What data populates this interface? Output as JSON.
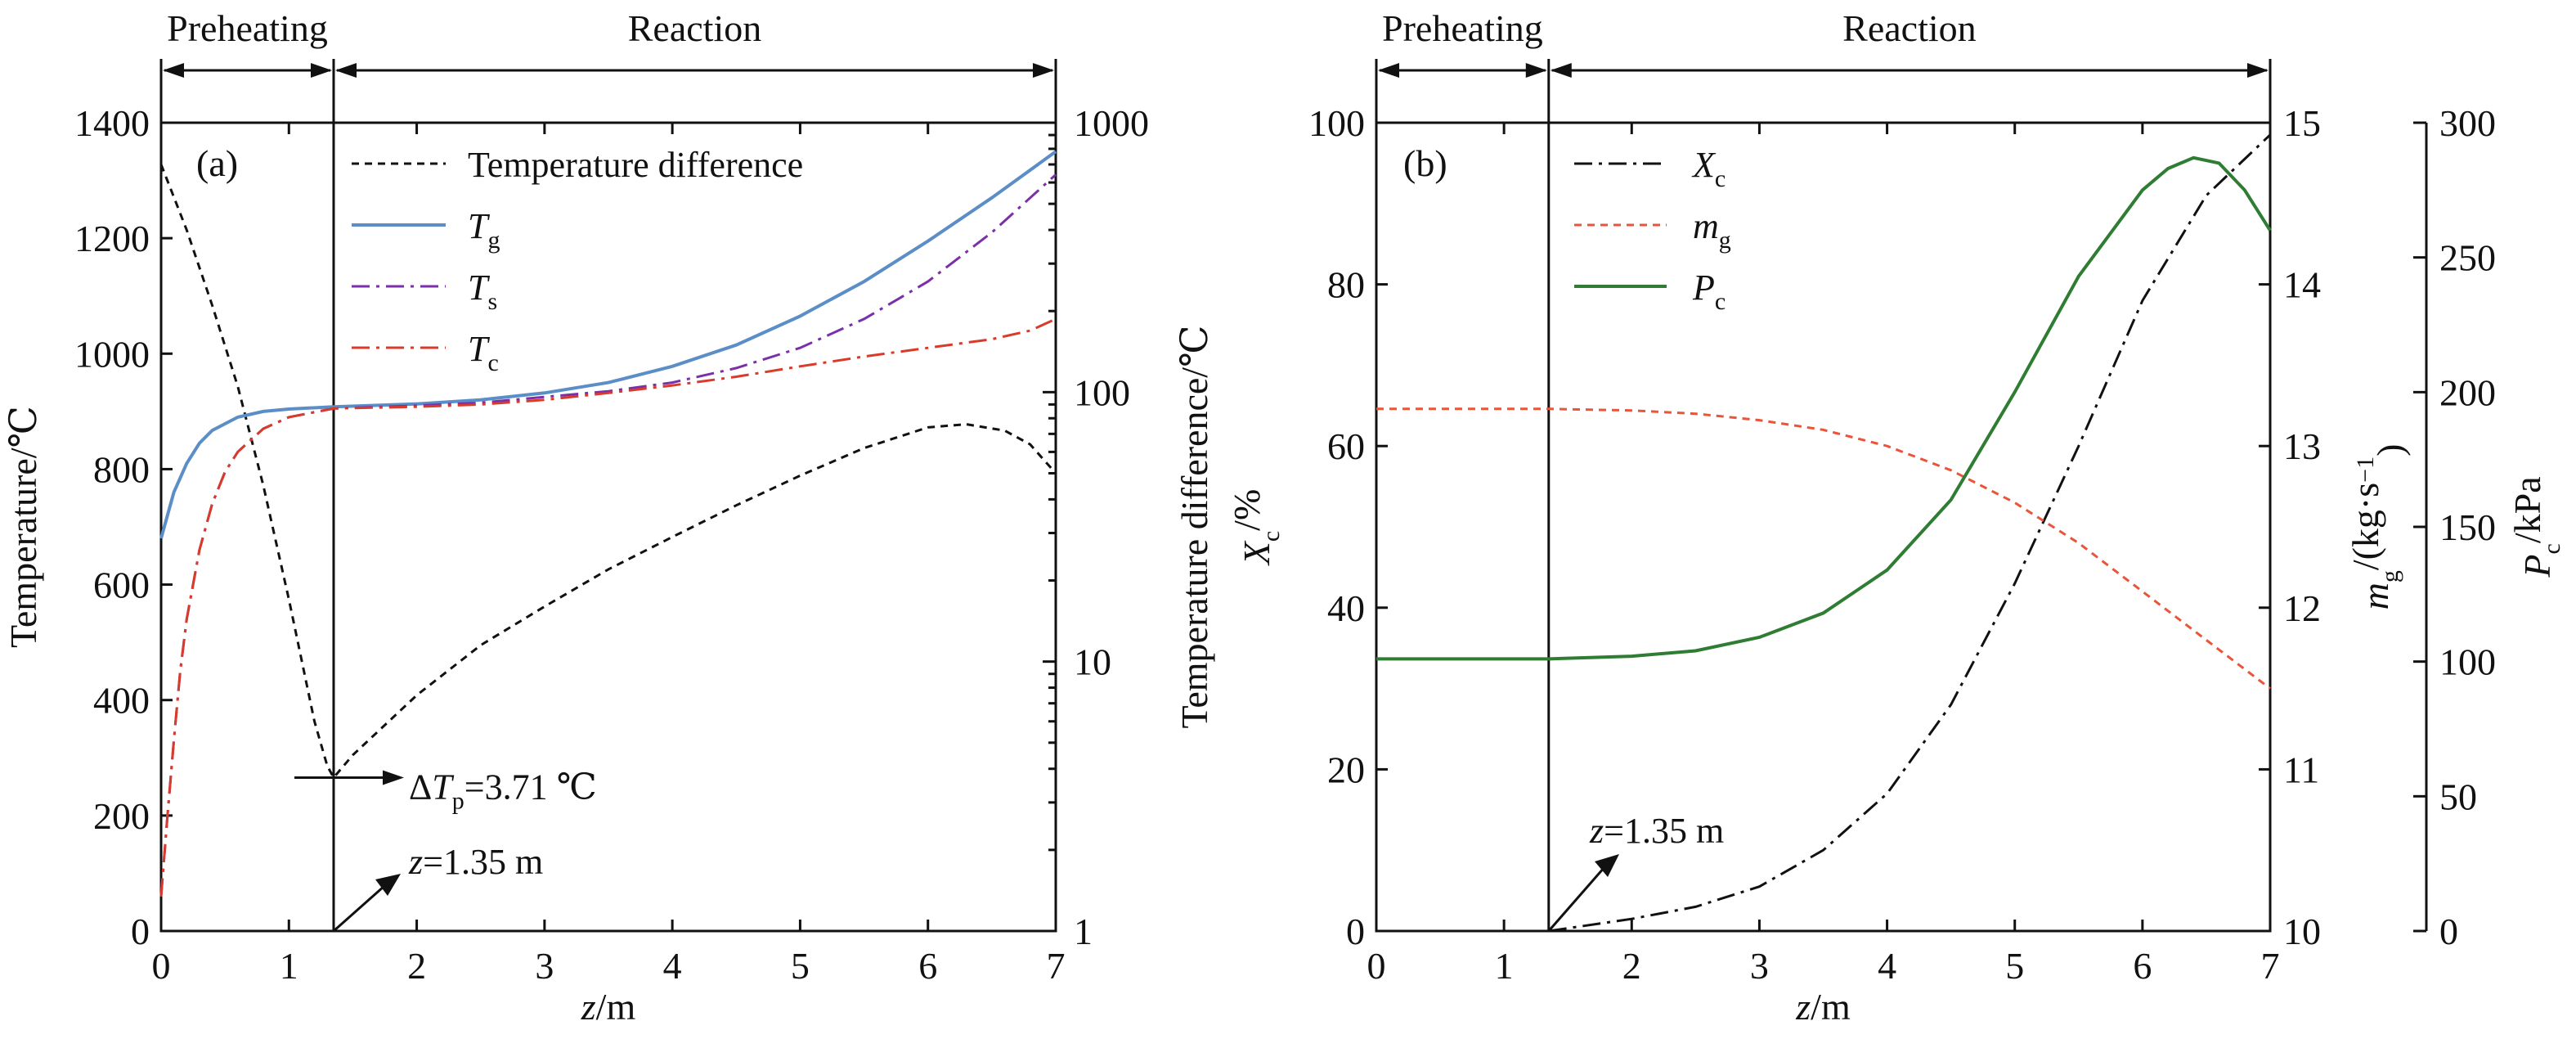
{
  "chart_data": [
    {
      "panel": "(a)",
      "type": "line",
      "phases": [
        "Preheating",
        "Reaction"
      ],
      "xlabel": {
        "var": "z",
        "unit": "/m"
      },
      "xlim": [
        0,
        7
      ],
      "xticks": [
        0,
        1,
        2,
        3,
        4,
        5,
        6,
        7
      ],
      "y_left": {
        "label": "Temperature/℃",
        "ylim": [
          0,
          1400
        ],
        "ticks": [
          0,
          200,
          400,
          600,
          800,
          1000,
          1200,
          1400
        ]
      },
      "y_right": {
        "label": "Temperature difference/℃",
        "scale": "log",
        "ylim": [
          1,
          1000
        ],
        "tick_labels": [
          "1",
          "10",
          "100",
          "1000"
        ]
      },
      "divider_x": 1.35,
      "series": [
        {
          "name": "Temperature difference",
          "axis": "right",
          "color": "#111111",
          "dash": "dashed",
          "x": [
            0,
            0.2,
            0.4,
            0.6,
            0.8,
            1.0,
            1.2,
            1.3,
            1.35,
            1.5,
            2,
            2.5,
            3,
            3.5,
            4,
            4.5,
            5,
            5.5,
            6,
            6.3,
            6.6,
            6.8,
            7
          ],
          "y": [
            700,
            400,
            210,
            105,
            45,
            17,
            6.0,
            4.1,
            3.71,
            4.5,
            7.5,
            11.5,
            16,
            22,
            29,
            38,
            49,
            62,
            74,
            76,
            72,
            64,
            50
          ]
        },
        {
          "name": "Tg",
          "axis": "left",
          "color": "#5b8ec7",
          "dash": "solid",
          "x": [
            0,
            0.1,
            0.2,
            0.3,
            0.4,
            0.6,
            0.8,
            1.0,
            1.35,
            2,
            2.5,
            3,
            3.5,
            4,
            4.5,
            5,
            5.5,
            6,
            6.5,
            7
          ],
          "y": [
            680,
            760,
            810,
            845,
            867,
            890,
            900,
            904,
            908,
            913,
            920,
            932,
            950,
            978,
            1015,
            1065,
            1125,
            1195,
            1270,
            1350
          ]
        },
        {
          "name": "Ts",
          "axis": "left",
          "color": "#7b2fa8",
          "dash": "dashdot",
          "x": [
            0,
            0.05,
            0.1,
            0.15,
            0.2,
            0.3,
            0.4,
            0.5,
            0.6,
            0.8,
            1.0,
            1.35,
            2,
            2.5,
            3,
            3.5,
            4,
            4.5,
            5,
            5.5,
            6,
            6.5,
            7
          ],
          "y": [
            60,
            200,
            330,
            450,
            540,
            660,
            740,
            795,
            830,
            870,
            890,
            905,
            910,
            915,
            925,
            935,
            950,
            975,
            1010,
            1060,
            1125,
            1210,
            1310
          ]
        },
        {
          "name": "Tc",
          "axis": "left",
          "color": "#d93b2b",
          "dash": "dashdot",
          "x": [
            0,
            0.05,
            0.1,
            0.15,
            0.2,
            0.3,
            0.4,
            0.5,
            0.6,
            0.8,
            1.0,
            1.35,
            2,
            2.5,
            3,
            3.5,
            4,
            4.5,
            5,
            5.5,
            6,
            6.5,
            6.8,
            7
          ],
          "y": [
            60,
            200,
            330,
            450,
            540,
            660,
            740,
            795,
            830,
            870,
            890,
            905,
            908,
            912,
            920,
            932,
            945,
            960,
            978,
            995,
            1010,
            1025,
            1040,
            1060
          ]
        }
      ],
      "legend": [
        {
          "label": "Temperature difference"
        },
        {
          "label": "T",
          "sub": "g"
        },
        {
          "label": "T",
          "sub": "s"
        },
        {
          "label": "T",
          "sub": "c"
        }
      ],
      "annotations": [
        {
          "label": "ΔT",
          "sub": "p",
          "suffix": "=3.71 ℃"
        },
        {
          "label": "z",
          "suffix": "=1.35 m"
        }
      ]
    },
    {
      "panel": "(b)",
      "type": "line",
      "phases": [
        "Preheating",
        "Reaction"
      ],
      "xlabel": {
        "var": "z",
        "unit": "/m"
      },
      "xlim": [
        0,
        7
      ],
      "xticks": [
        0,
        1,
        2,
        3,
        4,
        5,
        6,
        7
      ],
      "y_left": {
        "label": "X",
        "sub": "c",
        "unit": "/%",
        "ylim": [
          0,
          100
        ],
        "ticks": [
          0,
          20,
          40,
          60,
          80,
          100
        ]
      },
      "y_right1": {
        "label": "m",
        "sub": "g",
        "unit": "/(kg·s",
        "sup": "−1",
        "close": ")",
        "ylim": [
          10,
          15
        ],
        "ticks": [
          10,
          11,
          12,
          13,
          14,
          15
        ]
      },
      "y_right2": {
        "label": "P",
        "sub": "c",
        "unit": "/kPa",
        "ylim": [
          0,
          300
        ],
        "ticks": [
          0,
          50,
          100,
          150,
          200,
          250,
          300
        ]
      },
      "divider_x": 1.35,
      "series": [
        {
          "name": "Xc",
          "axis": "left",
          "color": "#111111",
          "dash": "dashdot",
          "x": [
            1.35,
            2,
            2.5,
            3,
            3.5,
            4,
            4.5,
            5,
            5.5,
            6,
            6.5,
            7
          ],
          "y": [
            0,
            1.5,
            3,
            5.5,
            10,
            17,
            28,
            43,
            60,
            78,
            91,
            98.5
          ]
        },
        {
          "name": "mg",
          "axis": "right1",
          "color": "#e8553a",
          "dash": "dashed",
          "x": [
            0,
            0.5,
            1,
            1.35,
            2,
            2.5,
            3,
            3.5,
            4,
            4.5,
            5,
            5.5,
            6,
            6.5,
            7
          ],
          "y": [
            13.23,
            13.23,
            13.23,
            13.23,
            13.22,
            13.2,
            13.16,
            13.1,
            13.0,
            12.85,
            12.65,
            12.4,
            12.1,
            11.8,
            11.5
          ]
        },
        {
          "name": "Pc",
          "axis": "right2",
          "color": "#2e7d32",
          "dash": "solid",
          "x": [
            0,
            1,
            1.35,
            2,
            2.5,
            3,
            3.5,
            4,
            4.5,
            5,
            5.5,
            6,
            6.2,
            6.4,
            6.6,
            6.8,
            7
          ],
          "y": [
            101,
            101,
            101,
            102,
            104,
            109,
            118,
            134,
            160,
            200,
            243,
            275,
            283,
            287,
            285,
            275,
            260
          ]
        }
      ],
      "legend": [
        {
          "label": "X",
          "sub": "c"
        },
        {
          "label": "m",
          "sub": "g"
        },
        {
          "label": "P",
          "sub": "c"
        }
      ],
      "annotations": [
        {
          "label": "z",
          "suffix": "=1.35 m"
        }
      ]
    }
  ]
}
